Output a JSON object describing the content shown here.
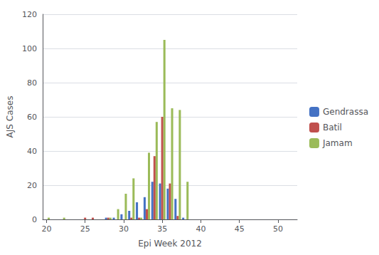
{
  "chart_data": {
    "type": "bar",
    "xlabel": "Epi Week 2012",
    "ylabel": "AJS Cases",
    "x": [
      20,
      21,
      22,
      23,
      24,
      25,
      26,
      27,
      28,
      29,
      30,
      31,
      32,
      33,
      34,
      35,
      36,
      37,
      38,
      39,
      40,
      41,
      42,
      43,
      44,
      45,
      46,
      47,
      48,
      49,
      50,
      51,
      52
    ],
    "series": [
      {
        "name": "Gendrassa",
        "color": "#4472C4",
        "values": [
          0,
          0,
          0,
          0,
          0,
          0,
          0,
          0,
          1,
          1,
          3,
          5,
          10,
          13,
          22,
          21,
          18,
          12,
          1,
          0,
          0,
          0,
          0,
          0,
          0,
          0,
          0,
          0,
          0,
          0,
          0,
          0,
          0
        ]
      },
      {
        "name": "Batil",
        "color": "#C0504D",
        "values": [
          0,
          0,
          0,
          0,
          0,
          1,
          1,
          0,
          1,
          0,
          0,
          1,
          1,
          6,
          37,
          60,
          21,
          2,
          0,
          0,
          0,
          0,
          0,
          0,
          0,
          0,
          0,
          0,
          0,
          0,
          0,
          0,
          0
        ]
      },
      {
        "name": "Jamam",
        "color": "#9BBB59",
        "values": [
          1,
          0,
          1,
          0,
          0,
          0,
          0,
          0,
          1,
          6,
          15,
          24,
          1,
          39,
          57,
          105,
          65,
          64,
          22,
          0,
          0,
          0,
          0,
          0,
          0,
          0,
          0,
          0,
          0,
          0,
          0,
          0,
          0
        ]
      }
    ],
    "xlim": [
      19.5,
      52.5
    ],
    "xticks": [
      20,
      25,
      30,
      35,
      40,
      45,
      50
    ],
    "ylim": [
      0,
      120
    ],
    "yticks": [
      0,
      20,
      40,
      60,
      80,
      100,
      120
    ],
    "grid": true,
    "legend": "right"
  }
}
